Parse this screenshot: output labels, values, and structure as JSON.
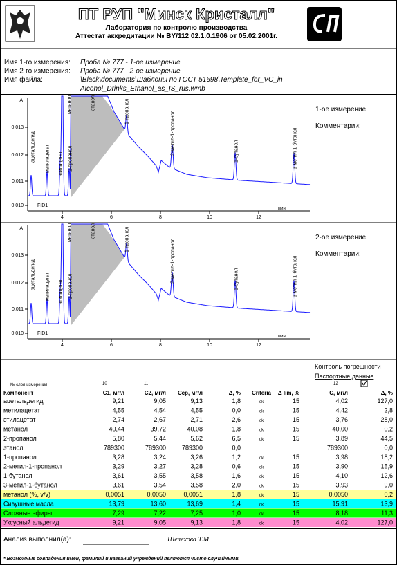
{
  "header": {
    "title": "ПТ РУП \"Минск Кристалл\"",
    "lab": "Лаборатория по контролю производства",
    "accreditation": "Аттестат аккредитации № BY/112 02.1.0.1906 от 05.02.2001г."
  },
  "info": {
    "rows": [
      [
        "Имя 1-го измерения:",
        "Проба № 777 - 1-ое измерение"
      ],
      [
        "Имя 2-го измерения:",
        "Проба № 777 - 2-ое измерение"
      ],
      [
        "Имя файла:",
        "\\Black\\documents\\Шаблоны по ГОСТ 51698\\Template_for_VC_in"
      ]
    ],
    "file_continued": "Alcohol_Drinks_Ethanol_as_IS_rus.wmb"
  },
  "chromatograms": [
    {
      "measurement": "1-ое измерение",
      "comments": "Комментарии:",
      "y_unit": "A",
      "yticks": [
        "0,010",
        "0,011",
        "0,012",
        "0,013"
      ],
      "xticks": [
        "4",
        "6",
        "8",
        "10",
        "12"
      ],
      "x_unit": "мин",
      "detector": "FID1",
      "peaks": [
        "ацетальдегид",
        "метилацетат",
        "этилацетат",
        "метанол",
        "2-пропанол",
        "этанол",
        "1-пропанол",
        "2-метил-1-пропанол",
        "1-бутанол",
        "3-метил-1-бутанол"
      ]
    },
    {
      "measurement": "2-ое измерение",
      "comments": "Комментарии:",
      "y_unit": "A",
      "yticks": [
        "0,010",
        "0,011",
        "0,012",
        "0,013"
      ],
      "xticks": [
        "4",
        "6",
        "8",
        "10",
        "12"
      ],
      "x_unit": "мин",
      "detector": "FID1",
      "peaks": [
        "ацетальдегид",
        "метилацетат",
        "этилацетат",
        "метанол",
        "2-пропанол",
        "этанол",
        "1-пропанол",
        "2-метил-1-пропанол",
        "1-бутанол",
        "3-метил-1-бутанол"
      ]
    }
  ],
  "table": {
    "control": "Контроль погрешности",
    "passport": "Паспортные данные",
    "layer_label": "№ слоя-измерения",
    "layers": [
      "10",
      "11",
      "12"
    ],
    "header": [
      "Компонент",
      "С1, мг/л",
      "С2, мг/л",
      "Сср, мг/л",
      "Δ, %",
      "Criteria",
      "Δ lim, %",
      "С, мг/л",
      "Δ, %"
    ],
    "rows": [
      [
        "ацетальдегид",
        "9,21",
        "9,05",
        "9,13",
        "1,8",
        "ok",
        "15",
        "4,02",
        "127,0"
      ],
      [
        "метилацетат",
        "4,55",
        "4,54",
        "4,55",
        "0,0",
        "ok",
        "15",
        "4,42",
        "2,8"
      ],
      [
        "этилацетат",
        "2,74",
        "2,67",
        "2,71",
        "2,6",
        "ok",
        "15",
        "3,76",
        "28,0"
      ],
      [
        "метанол",
        "40,44",
        "39,72",
        "40,08",
        "1,8",
        "ok",
        "15",
        "40,00",
        "0,2"
      ],
      [
        "2-пропанол",
        "5,80",
        "5,44",
        "5,62",
        "6,5",
        "ok",
        "15",
        "3,89",
        "44,5"
      ],
      [
        "этанол",
        "789300",
        "789300",
        "789300",
        "0,0",
        null,
        null,
        "789300",
        "0,0"
      ],
      [
        "1-пропанол",
        "3,28",
        "3,24",
        "3,26",
        "1,2",
        "ok",
        "15",
        "3,98",
        "18,2"
      ],
      [
        "2-метил-1-пропанол",
        "3,29",
        "3,27",
        "3,28",
        "0,6",
        "ok",
        "15",
        "3,90",
        "15,9"
      ],
      [
        "1-бутанол",
        "3,61",
        "3,55",
        "3,58",
        "1,6",
        "ok",
        "15",
        "4,10",
        "12,6"
      ],
      [
        "3-метил-1-бутанол",
        "3,61",
        "3,54",
        "3,58",
        "2,0",
        "ok",
        "15",
        "3,93",
        "9,0"
      ],
      [
        "метанол (%, v/v)",
        "0,0051",
        "0,0050",
        "0,0051",
        "1,8",
        "ok",
        "15",
        "0,0050",
        "0,2"
      ],
      [
        "Сивушные масла",
        "13,79",
        "13,60",
        "13,69",
        "1,4",
        "ok",
        "15",
        "15,91",
        "13,9"
      ],
      [
        "Сложные эфиры",
        "7,29",
        "7,22",
        "7,25",
        "1,0",
        "ok",
        "15",
        "8,18",
        "11,3"
      ],
      [
        "Уксусный альдегид",
        "9,21",
        "9,05",
        "9,13",
        "1,8",
        "ok",
        "15",
        "4,02",
        "127,0"
      ]
    ]
  },
  "footer": {
    "performed_by": "Анализ выполнил(а):",
    "analyst": "Шелехова Т.М",
    "note": "* Возможные совпадения имен, фамилий и названий учреждений являются чисто случайными."
  }
}
